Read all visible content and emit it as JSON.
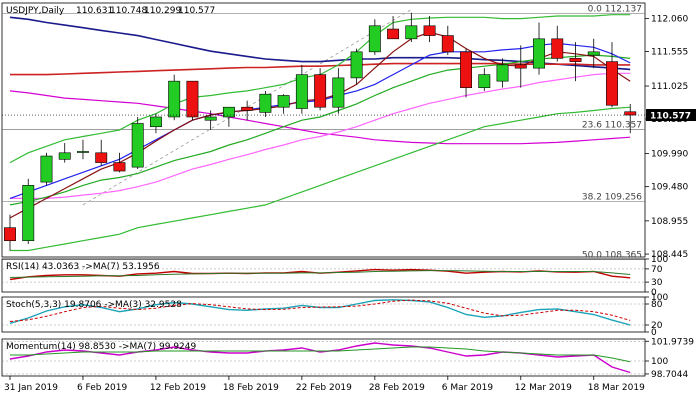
{
  "chart_data": {
    "type": "candlestick",
    "title": "USDJPY,Daily",
    "ohlc_header": [
      "110.631",
      "110.748",
      "110.299",
      "110.577"
    ],
    "price_tag": "110.577",
    "price_ticks": [
      "112.060",
      "111.555",
      "111.025",
      "110.520",
      "109.990",
      "109.480",
      "108.955",
      "108.445"
    ],
    "price_tick_values": [
      112.06,
      111.555,
      111.025,
      110.52,
      109.99,
      109.48,
      108.955,
      108.445
    ],
    "price_range": [
      108.4,
      112.3
    ],
    "date_ticks": [
      {
        "label": "31 Jan 2019",
        "index": 0
      },
      {
        "label": "6 Feb 2019",
        "index": 4
      },
      {
        "label": "12 Feb 2019",
        "index": 8
      },
      {
        "label": "18 Feb 2019",
        "index": 12
      },
      {
        "label": "22 Feb 2019",
        "index": 16
      },
      {
        "label": "28 Feb 2019",
        "index": 20
      },
      {
        "label": "6 Mar 2019",
        "index": 24
      },
      {
        "label": "12 Mar 2019",
        "index": 28
      },
      {
        "label": "18 Mar 2019",
        "index": 32
      }
    ],
    "candles": [
      {
        "o": 108.85,
        "h": 109.05,
        "l": 108.5,
        "c": 108.65
      },
      {
        "o": 108.65,
        "h": 109.6,
        "l": 108.6,
        "c": 109.5
      },
      {
        "o": 109.55,
        "h": 110.0,
        "l": 109.5,
        "c": 109.95
      },
      {
        "o": 109.9,
        "h": 110.15,
        "l": 109.85,
        "c": 110.0
      },
      {
        "o": 110.02,
        "h": 110.2,
        "l": 109.9,
        "c": 110.02
      },
      {
        "o": 110.0,
        "h": 110.2,
        "l": 109.8,
        "c": 109.85
      },
      {
        "o": 109.85,
        "h": 110.0,
        "l": 109.7,
        "c": 109.72
      },
      {
        "o": 109.78,
        "h": 110.55,
        "l": 109.75,
        "c": 110.45
      },
      {
        "o": 110.4,
        "h": 110.6,
        "l": 110.3,
        "c": 110.55
      },
      {
        "o": 110.55,
        "h": 111.2,
        "l": 110.5,
        "c": 111.1
      },
      {
        "o": 111.1,
        "h": 111.1,
        "l": 110.5,
        "c": 110.55
      },
      {
        "o": 110.5,
        "h": 110.65,
        "l": 110.35,
        "c": 110.55
      },
      {
        "o": 110.55,
        "h": 110.7,
        "l": 110.4,
        "c": 110.7
      },
      {
        "o": 110.7,
        "h": 110.8,
        "l": 110.5,
        "c": 110.65
      },
      {
        "o": 110.62,
        "h": 110.95,
        "l": 110.55,
        "c": 110.9
      },
      {
        "o": 110.7,
        "h": 110.9,
        "l": 110.6,
        "c": 110.88
      },
      {
        "o": 110.68,
        "h": 111.35,
        "l": 110.6,
        "c": 111.2
      },
      {
        "o": 111.2,
        "h": 111.3,
        "l": 110.65,
        "c": 110.7
      },
      {
        "o": 110.7,
        "h": 111.3,
        "l": 110.6,
        "c": 111.15
      },
      {
        "o": 111.15,
        "h": 111.6,
        "l": 111.05,
        "c": 111.55
      },
      {
        "o": 111.55,
        "h": 112.05,
        "l": 111.5,
        "c": 111.95
      },
      {
        "o": 111.9,
        "h": 112.1,
        "l": 111.75,
        "c": 111.75
      },
      {
        "o": 111.75,
        "h": 112.15,
        "l": 111.7,
        "c": 111.95
      },
      {
        "o": 111.95,
        "h": 112.1,
        "l": 111.7,
        "c": 111.8
      },
      {
        "o": 111.8,
        "h": 111.95,
        "l": 111.5,
        "c": 111.55
      },
      {
        "o": 111.55,
        "h": 111.6,
        "l": 110.85,
        "c": 111.0
      },
      {
        "o": 111.0,
        "h": 111.3,
        "l": 110.95,
        "c": 111.2
      },
      {
        "o": 111.1,
        "h": 111.45,
        "l": 111.0,
        "c": 111.35
      },
      {
        "o": 111.35,
        "h": 111.65,
        "l": 111.0,
        "c": 111.3
      },
      {
        "o": 111.3,
        "h": 112.0,
        "l": 111.2,
        "c": 111.75
      },
      {
        "o": 111.75,
        "h": 111.95,
        "l": 111.4,
        "c": 111.45
      },
      {
        "o": 111.45,
        "h": 111.7,
        "l": 111.1,
        "c": 111.4
      },
      {
        "o": 111.5,
        "h": 111.75,
        "l": 111.3,
        "c": 111.55
      },
      {
        "o": 111.4,
        "h": 111.7,
        "l": 110.7,
        "c": 110.73
      },
      {
        "o": 110.63,
        "h": 110.75,
        "l": 110.3,
        "c": 110.58
      }
    ],
    "overlays": [
      {
        "name": "",
        "color": "#1a1a8c",
        "values": [
          112.08,
          112.05,
          112.0,
          111.96,
          111.92,
          111.88,
          111.84,
          111.8,
          111.74,
          111.68,
          111.62,
          111.56,
          111.52,
          111.48,
          111.44,
          111.42,
          111.4,
          111.4,
          111.42,
          111.44,
          111.44,
          111.46,
          111.46,
          111.46,
          111.46,
          111.45,
          111.43,
          111.42,
          111.4,
          111.38,
          111.36,
          111.34,
          111.32,
          111.3,
          111.28
        ]
      },
      {
        "name": "",
        "color": "#cc2222",
        "values": [
          111.2,
          111.2,
          111.2,
          111.21,
          111.22,
          111.23,
          111.24,
          111.25,
          111.26,
          111.27,
          111.28,
          111.29,
          111.3,
          111.31,
          111.31,
          111.32,
          111.33,
          111.33,
          111.34,
          111.35,
          111.36,
          111.37,
          111.37,
          111.37,
          111.37,
          111.37,
          111.37,
          111.37,
          111.36,
          111.36,
          111.36,
          111.36,
          111.35,
          111.35,
          111.35
        ]
      },
      {
        "name": "",
        "color": "#d400d4",
        "values": [
          110.95,
          110.92,
          110.88,
          110.84,
          110.82,
          110.8,
          110.78,
          110.76,
          110.72,
          110.68,
          110.64,
          110.6,
          110.55,
          110.5,
          110.45,
          110.4,
          110.35,
          110.3,
          110.27,
          110.24,
          110.2,
          110.18,
          110.16,
          110.15,
          110.14,
          110.14,
          110.14,
          110.14,
          110.14,
          110.15,
          110.16,
          110.18,
          110.2,
          110.22,
          110.24
        ]
      },
      {
        "name": "",
        "color": "#ff66ff",
        "values": [
          109.3,
          109.3,
          109.3,
          109.32,
          109.35,
          109.38,
          109.42,
          109.48,
          109.55,
          109.65,
          109.75,
          109.82,
          109.9,
          109.97,
          110.05,
          110.12,
          110.2,
          110.25,
          110.32,
          110.4,
          110.5,
          110.6,
          110.68,
          110.76,
          110.82,
          110.88,
          110.93,
          110.98,
          111.02,
          111.08,
          111.12,
          111.16,
          111.2,
          111.22,
          111.22
        ]
      },
      {
        "name": "",
        "color": "#22aa22",
        "values": [
          109.2,
          109.25,
          109.32,
          109.4,
          109.5,
          109.58,
          109.62,
          109.68,
          109.78,
          109.88,
          109.95,
          110.02,
          110.12,
          110.2,
          110.3,
          110.4,
          110.5,
          110.55,
          110.65,
          110.75,
          110.88,
          111.0,
          111.1,
          111.2,
          111.27,
          111.3,
          111.33,
          111.36,
          111.4,
          111.44,
          111.46,
          111.48,
          111.5,
          111.48,
          111.45
        ]
      },
      {
        "name": "",
        "color": "#2222ee",
        "values": [
          109.3,
          109.4,
          109.5,
          109.6,
          109.7,
          109.8,
          109.9,
          110.05,
          110.2,
          110.35,
          110.5,
          110.58,
          110.62,
          110.66,
          110.7,
          110.74,
          110.78,
          110.8,
          110.88,
          110.95,
          111.05,
          111.2,
          111.35,
          111.5,
          111.55,
          111.55,
          111.55,
          111.58,
          111.6,
          111.65,
          111.68,
          111.65,
          111.62,
          111.52,
          111.38
        ]
      },
      {
        "name": "",
        "color": "#881111",
        "values": [
          109.0,
          109.15,
          109.3,
          109.45,
          109.6,
          109.75,
          109.85,
          110.0,
          110.18,
          110.35,
          110.5,
          110.58,
          110.63,
          110.65,
          110.68,
          110.72,
          110.8,
          110.82,
          110.9,
          111.05,
          111.3,
          111.55,
          111.75,
          111.85,
          111.78,
          111.6,
          111.45,
          111.35,
          111.33,
          111.45,
          111.55,
          111.52,
          111.48,
          111.28,
          111.1
        ]
      },
      {
        "name": "",
        "color": "#33bb33",
        "values": [
          109.85,
          110.0,
          110.1,
          110.2,
          110.25,
          110.3,
          110.35,
          110.5,
          110.6,
          110.75,
          110.85,
          110.88,
          110.92,
          110.95,
          111.0,
          111.05,
          111.15,
          111.2,
          111.35,
          111.55,
          111.8,
          112.0,
          112.05,
          112.07,
          112.08,
          112.08,
          112.08,
          112.06,
          112.06,
          112.08,
          112.1,
          112.1,
          112.1,
          112.12,
          112.12
        ]
      },
      {
        "name": "",
        "color": "#33bb33",
        "values": [
          108.5,
          108.5,
          108.55,
          108.6,
          108.65,
          108.7,
          108.75,
          108.85,
          108.9,
          108.95,
          109.0,
          109.05,
          109.1,
          109.15,
          109.2,
          109.3,
          109.4,
          109.5,
          109.6,
          109.7,
          109.8,
          109.9,
          110.0,
          110.1,
          110.2,
          110.3,
          110.4,
          110.45,
          110.5,
          110.55,
          110.6,
          110.62,
          110.65,
          110.68,
          110.7
        ]
      }
    ],
    "fib_levels": [
      {
        "label": "0.0 112.137",
        "value": 112.137
      },
      {
        "label": "23.6 110.357",
        "value": 110.357
      },
      {
        "label": "38.2 109.256",
        "value": 109.256
      },
      {
        "label": "50.0 108.365",
        "value": 108.365
      }
    ],
    "trendline": {
      "start_index": 4,
      "start_value": 109.2,
      "end_index": 22,
      "end_value": 112.2
    },
    "panels": [
      {
        "title": "RSI(14) 43.0363 ->MA(7) 53.1956",
        "range": [
          0,
          100
        ],
        "ticks": [
          "100",
          "70",
          "30",
          "0"
        ],
        "tick_values": [
          100,
          70,
          30,
          0
        ],
        "series": [
          {
            "name": "RSI(14)",
            "color": "#c00000",
            "values": [
              38,
              46,
              50,
              52,
              52,
              50,
              48,
              55,
              57,
              62,
              56,
              56,
              57,
              56,
              58,
              58,
              62,
              57,
              60,
              64,
              68,
              66,
              68,
              66,
              63,
              57,
              60,
              62,
              61,
              64,
              61,
              60,
              62,
              48,
              43
            ]
          },
          {
            "name": "MA(7)",
            "color": "#2a7a2a",
            "values": [
              44,
              45,
              46,
              47,
              48,
              49,
              49,
              50,
              52,
              54,
              55,
              56,
              57,
              57,
              57,
              57,
              58,
              58,
              59,
              60,
              62,
              63,
              64,
              65,
              65,
              64,
              63,
              62,
              62,
              62,
              62,
              62,
              62,
              58,
              53
            ]
          }
        ]
      },
      {
        "title": "Stoch(5,3,3) 19.8706 ->MA(3) 32.9528",
        "range": [
          0,
          100
        ],
        "ticks": [
          "100",
          "80",
          "20",
          "0"
        ],
        "tick_values": [
          100,
          80,
          20,
          0
        ],
        "series": [
          {
            "name": "Stoch(5,3,3)",
            "color": "#1aa3b8",
            "values": [
              25,
              40,
              60,
              72,
              78,
              70,
              58,
              66,
              78,
              84,
              80,
              72,
              64,
              62,
              66,
              68,
              76,
              70,
              70,
              80,
              90,
              92,
              90,
              86,
              70,
              50,
              42,
              46,
              56,
              64,
              66,
              58,
              50,
              34,
              20
            ]
          },
          {
            "name": "MA(3)",
            "color": "#cc0000",
            "values": [
              30,
              35,
              45,
              58,
              70,
              73,
              68,
              64,
              68,
              76,
              81,
              78,
              72,
              66,
              64,
              65,
              70,
              71,
              72,
              74,
              80,
              88,
              91,
              89,
              82,
              68,
              54,
              46,
              48,
              55,
              62,
              62,
              58,
              48,
              33
            ]
          }
        ]
      },
      {
        "title": "Momentum(14) 98.8530 ->MA(7) 99.9249",
        "ticks": [
          "101.9739",
          "100",
          "98.7044"
        ],
        "tick_values": [
          101.9739,
          100,
          98.7044
        ],
        "range": [
          98.5,
          102.2
        ],
        "series": [
          {
            "name": "Momentum(14)",
            "color": "#cc00cc",
            "values": [
              100.2,
              100.5,
              100.9,
              101.1,
              101.0,
              100.8,
              100.6,
              100.9,
              101.1,
              101.4,
              101.1,
              100.9,
              100.8,
              100.8,
              101.0,
              101.1,
              101.3,
              100.9,
              101.1,
              101.5,
              101.8,
              101.6,
              101.5,
              101.3,
              100.9,
              100.5,
              100.6,
              100.9,
              100.8,
              100.6,
              100.4,
              100.5,
              100.6,
              99.4,
              98.85
            ]
          },
          {
            "name": "MA(7)",
            "color": "#229922",
            "values": [
              100.6,
              100.6,
              100.7,
              100.8,
              100.9,
              100.9,
              100.9,
              100.9,
              101.0,
              101.0,
              101.0,
              101.0,
              101.0,
              101.0,
              101.0,
              101.0,
              101.0,
              101.0,
              101.0,
              101.1,
              101.2,
              101.3,
              101.4,
              101.4,
              101.3,
              101.2,
              101.0,
              100.9,
              100.8,
              100.7,
              100.6,
              100.6,
              100.6,
              100.3,
              99.92
            ]
          }
        ]
      }
    ]
  }
}
